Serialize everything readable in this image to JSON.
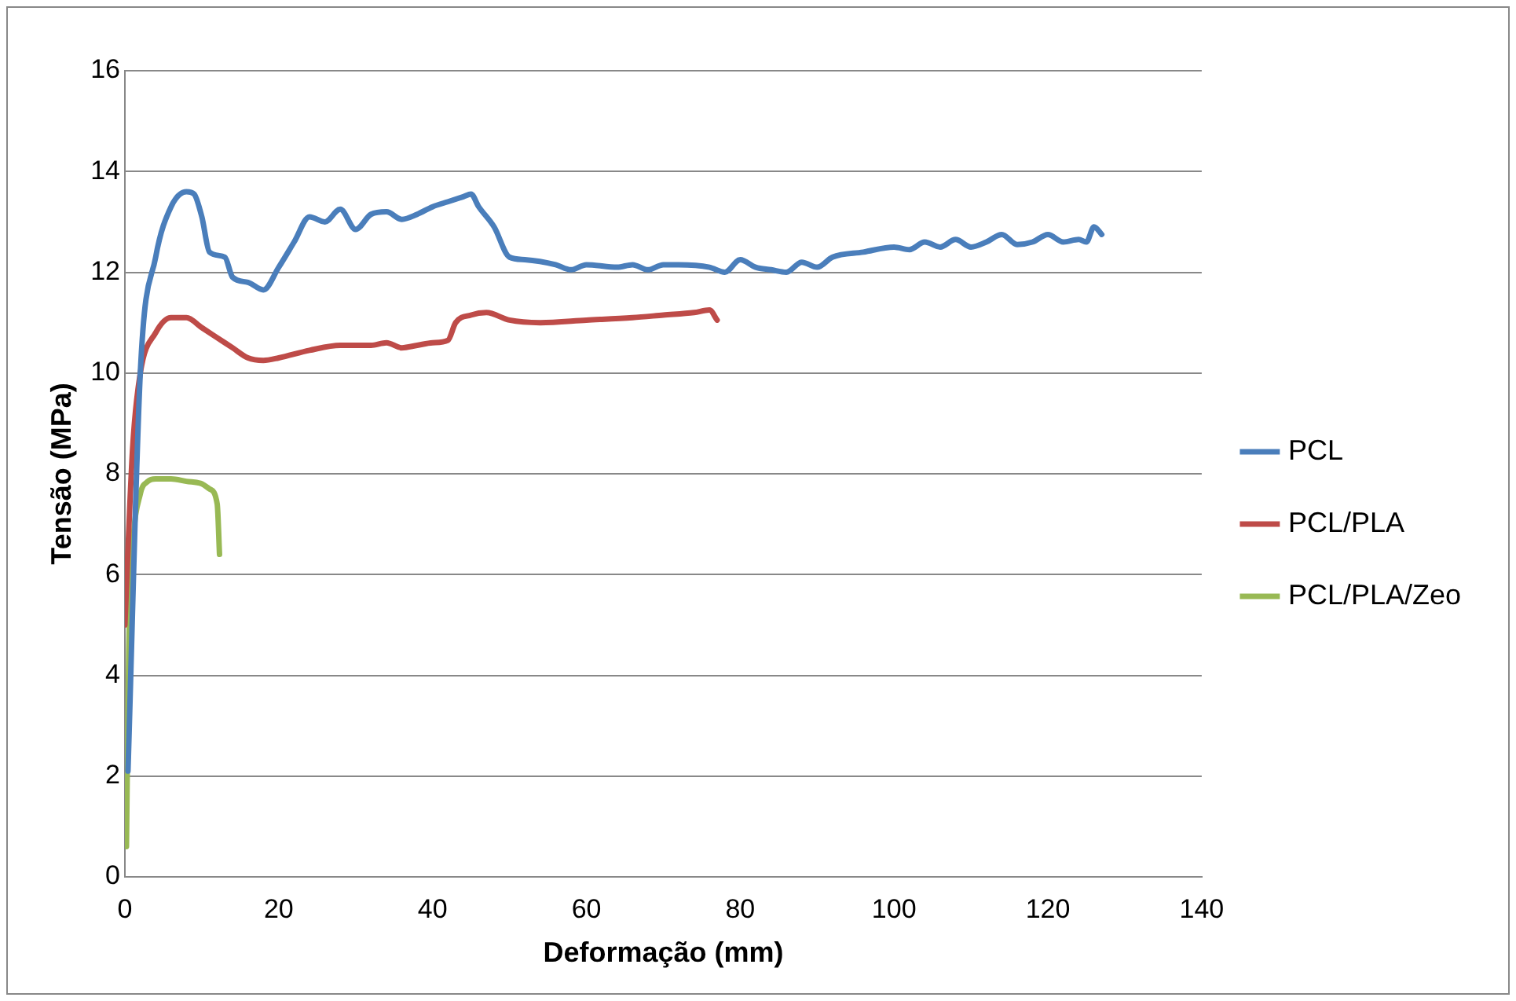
{
  "chart_data": {
    "type": "line",
    "xlabel": "Deformação (mm)",
    "ylabel": "Tensão (MPa)",
    "xlim": [
      0,
      140
    ],
    "xticks": [
      0,
      20,
      40,
      60,
      80,
      100,
      120,
      140
    ],
    "ylim": [
      0,
      16
    ],
    "yticks": [
      0,
      2,
      4,
      6,
      8,
      10,
      12,
      14,
      16
    ],
    "grid": "y",
    "legend": "right",
    "marker": "none",
    "line_style": "solid",
    "series": [
      {
        "name": "PCL",
        "color": "#4a7ebb",
        "x": [
          0.4,
          2,
          4,
          6,
          8,
          9,
          10,
          11,
          13,
          14,
          16,
          18,
          20,
          22,
          24,
          26,
          28,
          30,
          32,
          34,
          36,
          38,
          40,
          42,
          44,
          45,
          46,
          48,
          50,
          52,
          56,
          58,
          60,
          64,
          66,
          68,
          70,
          72,
          76,
          78,
          80,
          82,
          84,
          86,
          88,
          90,
          92,
          96,
          100,
          102,
          104,
          106,
          108,
          110,
          112,
          114,
          116,
          118,
          120,
          122,
          124,
          125,
          126,
          127
        ],
        "values": [
          2.1,
          10,
          12.3,
          13.3,
          13.6,
          13.55,
          13.1,
          12.4,
          12.3,
          11.9,
          11.8,
          11.65,
          12.1,
          12.6,
          13.1,
          13,
          13.25,
          12.85,
          13.15,
          13.2,
          13.05,
          13.15,
          13.3,
          13.4,
          13.5,
          13.55,
          13.3,
          12.9,
          12.3,
          12.25,
          12.15,
          12.05,
          12.15,
          12.1,
          12.15,
          12.05,
          12.15,
          12.15,
          12.1,
          12,
          12.25,
          12.1,
          12.05,
          12,
          12.2,
          12.1,
          12.3,
          12.4,
          12.5,
          12.45,
          12.6,
          12.5,
          12.65,
          12.5,
          12.6,
          12.75,
          12.55,
          12.6,
          12.75,
          12.6,
          12.65,
          12.6,
          12.9,
          12.75
        ]
      },
      {
        "name": "PCL/PLA",
        "color": "#be4b48",
        "x": [
          0,
          1,
          2,
          4,
          6,
          8,
          10,
          12,
          14,
          16,
          18,
          20,
          24,
          28,
          32,
          34,
          36,
          38,
          40,
          42,
          43,
          45,
          47,
          50,
          54,
          60,
          66,
          70,
          74,
          76,
          77
        ],
        "values": [
          5,
          8.5,
          10,
          10.8,
          11.1,
          11.1,
          10.9,
          10.7,
          10.5,
          10.3,
          10.25,
          10.3,
          10.45,
          10.55,
          10.55,
          10.6,
          10.5,
          10.55,
          10.6,
          10.65,
          11,
          11.15,
          11.2,
          11.05,
          11,
          11.05,
          11.1,
          11.15,
          11.2,
          11.25,
          11.05
        ]
      },
      {
        "name": "PCL/PLA/Zeo",
        "color": "#98b954",
        "x": [
          0.2,
          0.5,
          1,
          2,
          3,
          4,
          6,
          8,
          10,
          11,
          12,
          12.3
        ],
        "values": [
          0.6,
          4.5,
          6.5,
          7.6,
          7.85,
          7.9,
          7.9,
          7.85,
          7.8,
          7.7,
          7.4,
          6.4
        ]
      }
    ]
  }
}
